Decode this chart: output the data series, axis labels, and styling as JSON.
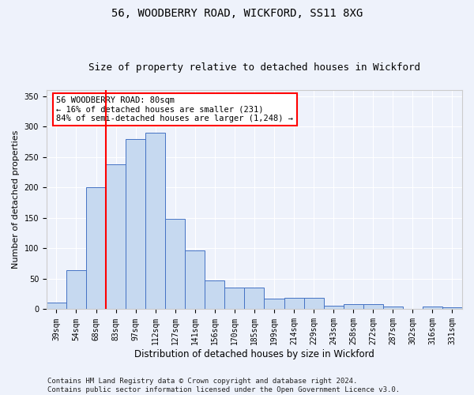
{
  "title": "56, WOODBERRY ROAD, WICKFORD, SS11 8XG",
  "subtitle": "Size of property relative to detached houses in Wickford",
  "xlabel": "Distribution of detached houses by size in Wickford",
  "ylabel": "Number of detached properties",
  "categories": [
    "39sqm",
    "54sqm",
    "68sqm",
    "83sqm",
    "97sqm",
    "112sqm",
    "127sqm",
    "141sqm",
    "156sqm",
    "170sqm",
    "185sqm",
    "199sqm",
    "214sqm",
    "229sqm",
    "243sqm",
    "258sqm",
    "272sqm",
    "287sqm",
    "302sqm",
    "316sqm",
    "331sqm"
  ],
  "values": [
    11,
    64,
    200,
    238,
    280,
    290,
    149,
    97,
    47,
    35,
    35,
    18,
    19,
    19,
    6,
    9,
    8,
    5,
    1,
    5,
    3
  ],
  "bar_color": "#c6d9f0",
  "bar_edge_color": "#4472c4",
  "vline_index": 2.5,
  "vline_color": "red",
  "annotation_text": "56 WOODBERRY ROAD: 80sqm\n← 16% of detached houses are smaller (231)\n84% of semi-detached houses are larger (1,248) →",
  "annotation_box_color": "white",
  "annotation_box_edgecolor": "red",
  "ylim": [
    0,
    360
  ],
  "yticks": [
    0,
    50,
    100,
    150,
    200,
    250,
    300,
    350
  ],
  "footer_line1": "Contains HM Land Registry data © Crown copyright and database right 2024.",
  "footer_line2": "Contains public sector information licensed under the Open Government Licence v3.0.",
  "background_color": "#eef2fb",
  "plot_background": "#eef2fb",
  "title_fontsize": 10,
  "subtitle_fontsize": 9,
  "tick_fontsize": 7,
  "ylabel_fontsize": 8,
  "xlabel_fontsize": 8.5,
  "footer_fontsize": 6.5,
  "annotation_fontsize": 7.5
}
